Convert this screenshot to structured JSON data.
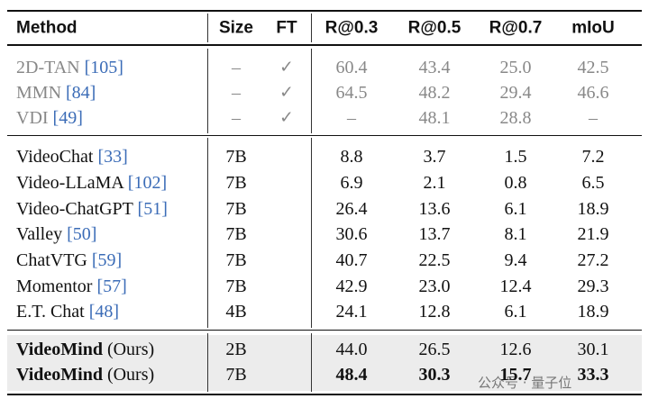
{
  "table": {
    "header": [
      "Method",
      "Size",
      "FT",
      "R@0.3",
      "R@0.5",
      "R@0.7",
      "mIoU"
    ],
    "groups": [
      {
        "rows": [
          {
            "method": "2D-TAN",
            "ref": "[105]",
            "size": "–",
            "ft": "✓",
            "values": [
              "60.4",
              "43.4",
              "25.0",
              "42.5"
            ]
          },
          {
            "method": "MMN",
            "ref": "[84]",
            "size": "–",
            "ft": "✓",
            "values": [
              "64.5",
              "48.2",
              "29.4",
              "46.6"
            ]
          },
          {
            "method": "VDI",
            "ref": "[49]",
            "size": "–",
            "ft": "✓",
            "values": [
              "–",
              "48.1",
              "28.8",
              "–"
            ]
          }
        ]
      },
      {
        "rows": [
          {
            "method": "VideoChat",
            "ref": "[33]",
            "size": "7B",
            "ft": "",
            "values": [
              "8.8",
              "3.7",
              "1.5",
              "7.2"
            ]
          },
          {
            "method": "Video-LLaMA",
            "ref": "[102]",
            "size": "7B",
            "ft": "",
            "values": [
              "6.9",
              "2.1",
              "0.8",
              "6.5"
            ]
          },
          {
            "method": "Video-ChatGPT",
            "ref": "[51]",
            "size": "7B",
            "ft": "",
            "values": [
              "26.4",
              "13.6",
              "6.1",
              "18.9"
            ]
          },
          {
            "method": "Valley",
            "ref": "[50]",
            "size": "7B",
            "ft": "",
            "values": [
              "30.6",
              "13.7",
              "8.1",
              "21.9"
            ]
          },
          {
            "method": "ChatVTG",
            "ref": "[59]",
            "size": "7B",
            "ft": "",
            "values": [
              "40.7",
              "22.5",
              "9.4",
              "27.2"
            ]
          },
          {
            "method": "Momentor",
            "ref": "[57]",
            "size": "7B",
            "ft": "",
            "values": [
              "42.9",
              "23.0",
              "12.4",
              "29.3"
            ]
          },
          {
            "method": "E.T. Chat",
            "ref": "[48]",
            "size": "4B",
            "ft": "",
            "values": [
              "24.1",
              "12.8",
              "6.1",
              "18.9"
            ]
          }
        ]
      },
      {
        "rows": [
          {
            "method": "VideoMind",
            "suffix": "(Ours)",
            "size": "2B",
            "ft": "",
            "values": [
              "44.0",
              "26.5",
              "12.6",
              "30.1"
            ]
          },
          {
            "method": "VideoMind",
            "suffix": "(Ours)",
            "size": "7B",
            "ft": "",
            "values": [
              "48.4",
              "30.3",
              "15.7",
              "33.3"
            ],
            "bold": true
          }
        ]
      }
    ],
    "watermark": "公众号 · 量子位"
  }
}
